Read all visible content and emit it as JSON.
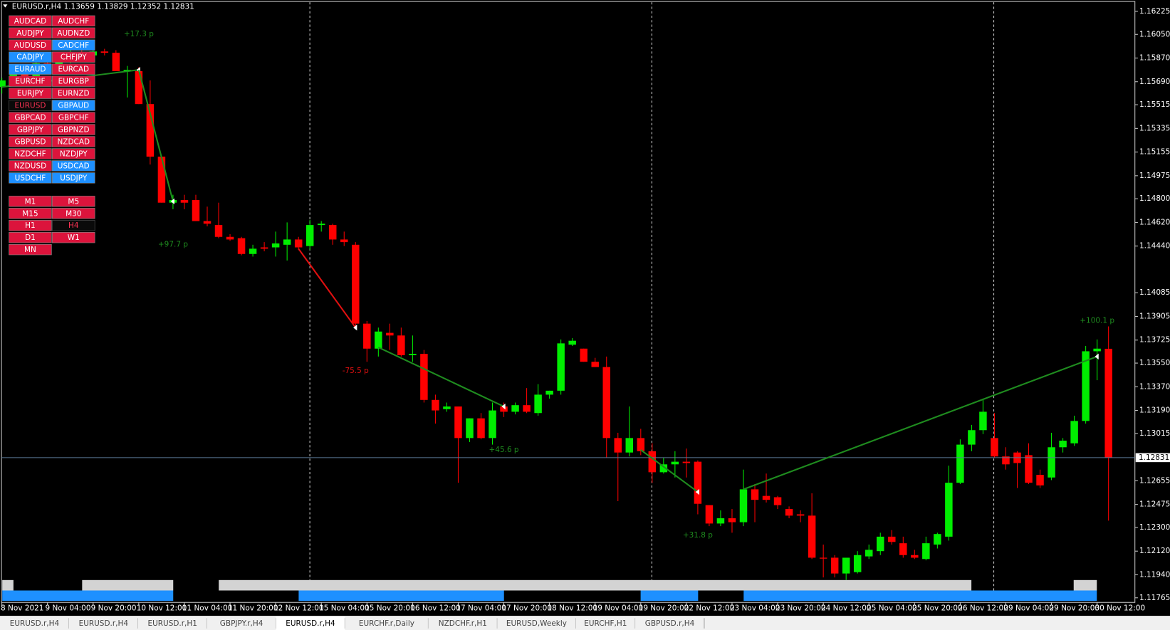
{
  "header": {
    "symbol": "EURUSD.r,H4"
  },
  "chart_data": {
    "type": "candlestick",
    "up_color": "#00ee00",
    "down_color": "#ff0000",
    "x": [
      "8 Nov 2021",
      null,
      null,
      null,
      "9 Nov 04:00",
      null,
      null,
      null,
      "9 Nov 20:00",
      null,
      null,
      null,
      "10 Nov 12:00",
      null,
      null,
      null,
      "11 Nov 04:00",
      null,
      null,
      null,
      "11 Nov 20:00",
      null,
      null,
      null,
      "12 Nov 12:00",
      null,
      null,
      null,
      "15 Nov 04:00",
      null,
      null,
      null,
      "15 Nov 20:00",
      null,
      null,
      null,
      "16 Nov 12:00",
      null,
      null,
      null,
      "17 Nov 04:00",
      null,
      null,
      null,
      "17 Nov 20:00",
      null,
      null,
      null,
      "18 Nov 12:00",
      null,
      null,
      null,
      "19 Nov 04:00",
      null,
      null,
      null,
      "19 Nov 20:00",
      null,
      null,
      null,
      "22 Nov 12:00",
      null,
      null,
      null,
      "23 Nov 04:00",
      null,
      null,
      null,
      "23 Nov 20:00",
      null,
      null,
      null,
      "24 Nov 12:00",
      null,
      null,
      null,
      "25 Nov 04:00",
      null,
      null,
      null,
      "25 Nov 20:00",
      null,
      null,
      null,
      "26 Nov 12:00",
      null,
      null,
      null,
      "29 Nov 04:00",
      null,
      null,
      null,
      "29 Nov 20:00",
      null,
      null,
      null,
      "30 Nov 12:00",
      null
    ],
    "open": [
      1.1565,
      1.157,
      1.1577,
      1.1571,
      1.1583,
      1.1578,
      1.1587,
      1.1591,
      1.1589,
      1.1592,
      1.1591,
      1.1577,
      1.1577,
      1.1552,
      1.1512,
      1.1477,
      1.1479,
      1.1479,
      1.1463,
      1.146,
      1.1451,
      1.145,
      1.1438,
      1.1443,
      1.1443,
      1.1445,
      1.1449,
      1.1444,
      1.146,
      1.146,
      1.1449,
      1.1445,
      1.1385,
      1.1366,
      1.1378,
      1.1376,
      1.1361,
      1.1362,
      1.1327,
      1.132,
      1.1322,
      1.1298,
      1.1313,
      1.1298,
      1.1322,
      1.1318,
      1.1323,
      1.1317,
      1.1331,
      1.1334,
      1.1369,
      1.1366,
      1.1356,
      1.1352,
      1.1298,
      1.1287,
      1.1298,
      1.1288,
      1.1272,
      1.1278,
      1.128,
      1.128,
      1.1247,
      1.1233,
      1.1237,
      1.1234,
      1.1259,
      1.1254,
      1.1253,
      1.1244,
      1.124,
      1.1239,
      1.1207,
      1.1207,
      1.1195,
      1.1196,
      1.1208,
      1.1212,
      1.1223,
      1.1218,
      1.1209,
      1.1206,
      1.1217,
      1.1223,
      1.1264,
      1.1293,
      1.1304,
      1.1298,
      1.1284,
      1.1287,
      1.1285,
      1.127,
      1.1268,
      1.1291,
      1.1294,
      1.1311,
      1.1364,
      1.13659
    ],
    "high": [
      1.1572,
      1.158,
      1.1582,
      1.1585,
      1.1588,
      1.159,
      1.1595,
      1.1594,
      1.1596,
      1.1594,
      1.1593,
      1.1581,
      1.158,
      1.157,
      1.1512,
      1.1483,
      1.1483,
      1.1483,
      1.1474,
      1.1477,
      1.1453,
      1.1451,
      1.1445,
      1.1447,
      1.1455,
      1.1462,
      1.1451,
      1.1464,
      1.1463,
      1.1461,
      1.1455,
      1.1447,
      1.1387,
      1.1382,
      1.1385,
      1.1382,
      1.1376,
      1.1365,
      1.1331,
      1.1325,
      1.1322,
      1.1313,
      1.1317,
      1.1325,
      1.1325,
      1.1325,
      1.1336,
      1.1339,
      1.1334,
      1.1373,
      1.1374,
      1.1366,
      1.1359,
      1.136,
      1.1302,
      1.1322,
      1.1305,
      1.1294,
      1.1283,
      1.1288,
      1.129,
      1.1281,
      1.1247,
      1.1243,
      1.1244,
      1.1274,
      1.1263,
      1.1271,
      1.1254,
      1.1246,
      1.1243,
      1.1256,
      1.1217,
      1.1209,
      1.1206,
      1.1212,
      1.1217,
      1.1226,
      1.1228,
      1.1223,
      1.1213,
      1.1223,
      1.1226,
      1.1277,
      1.1297,
      1.1308,
      1.1328,
      1.1317,
      1.1291,
      1.1288,
      1.1294,
      1.1274,
      1.1302,
      1.1298,
      1.1315,
      1.1368,
      1.1373,
      1.13829
    ],
    "low": [
      1.156,
      1.1566,
      1.1568,
      1.1569,
      1.1575,
      1.1576,
      1.1583,
      1.1585,
      1.1587,
      1.1589,
      1.1577,
      1.1557,
      1.1552,
      1.1506,
      1.1477,
      1.1472,
      1.1472,
      1.1463,
      1.1459,
      1.145,
      1.1448,
      1.1437,
      1.1436,
      1.144,
      1.1436,
      1.1433,
      1.1441,
      1.1441,
      1.1455,
      1.1445,
      1.1444,
      1.1382,
      1.1356,
      1.136,
      1.1365,
      1.136,
      1.1356,
      1.1325,
      1.1309,
      1.1318,
      1.1264,
      1.1295,
      1.1297,
      1.1293,
      1.1314,
      1.1316,
      1.1317,
      1.1315,
      1.1328,
      1.1331,
      1.1368,
      1.1356,
      1.1352,
      1.1283,
      1.125,
      1.1284,
      1.1285,
      1.1264,
      1.1271,
      1.1268,
      1.1268,
      1.124,
      1.1231,
      1.1231,
      1.1226,
      1.1231,
      1.1234,
      1.1249,
      1.1244,
      1.1237,
      1.1234,
      1.1206,
      1.1192,
      1.1192,
      1.119,
      1.1195,
      1.1206,
      1.1209,
      1.1217,
      1.1207,
      1.1206,
      1.1205,
      1.1214,
      1.122,
      1.1263,
      1.1288,
      1.1301,
      1.1283,
      1.1274,
      1.126,
      1.1263,
      1.126,
      1.1266,
      1.1287,
      1.1292,
      1.1309,
      1.1342,
      1.12352
    ],
    "close": [
      1.157,
      1.1577,
      1.1571,
      1.1583,
      1.1578,
      1.1587,
      1.1591,
      1.1589,
      1.1592,
      1.1591,
      1.1577,
      1.1578,
      1.1552,
      1.1512,
      1.1477,
      1.1479,
      1.1477,
      1.1463,
      1.1461,
      1.1451,
      1.1449,
      1.1438,
      1.1442,
      1.1442,
      1.1446,
      1.1449,
      1.1443,
      1.146,
      1.1461,
      1.1449,
      1.1447,
      1.1385,
      1.1366,
      1.1379,
      1.1376,
      1.1361,
      1.1362,
      1.1327,
      1.1319,
      1.1322,
      1.1298,
      1.1313,
      1.1298,
      1.1319,
      1.1318,
      1.1323,
      1.1318,
      1.1331,
      1.1334,
      1.137,
      1.1372,
      1.1356,
      1.1352,
      1.1298,
      1.1287,
      1.1298,
      1.1288,
      1.1272,
      1.1278,
      1.128,
      1.1279,
      1.1248,
      1.1233,
      1.1237,
      1.1234,
      1.1259,
      1.1251,
      1.1251,
      1.1247,
      1.1239,
      1.1239,
      1.1207,
      1.1207,
      1.1195,
      1.1207,
      1.1209,
      1.1213,
      1.1223,
      1.1219,
      1.1209,
      1.1207,
      1.1218,
      1.1225,
      1.1264,
      1.1293,
      1.1304,
      1.1318,
      1.1284,
      1.1278,
      1.1279,
      1.1264,
      1.1262,
      1.1291,
      1.1296,
      1.1311,
      1.1364,
      1.1366,
      1.12831
    ],
    "ylim": [
      1.1173,
      1.163
    ],
    "yticks": [
      1.16225,
      {
        "value": 1.1605,
        "label": "1.16050"
      },
      {
        "value": 1.1587,
        "label": "1.15870"
      },
      {
        "value": 1.1569,
        "label": "1.15690"
      },
      1.15515,
      1.15335,
      1.15155,
      1.14975,
      {
        "value": 1.148,
        "label": "1.14800"
      },
      {
        "value": 1.1462,
        "label": "1.14620"
      },
      {
        "value": 1.1444,
        "label": "1.14440"
      },
      1.14085,
      1.13905,
      1.13725,
      {
        "value": 1.1355,
        "label": "1.13550"
      },
      {
        "value": 1.1337,
        "label": "1.13370"
      },
      {
        "value": 1.1319,
        "label": "1.13190"
      },
      1.13015,
      1.12655,
      1.12475,
      {
        "value": 1.123,
        "label": "1.12300"
      },
      {
        "value": 1.1212,
        "label": "1.12120"
      },
      {
        "value": 1.1194,
        "label": "1.11940"
      },
      1.11765
    ],
    "price_line_color": "#5a7896",
    "trend_lines": [
      {
        "label": "+17.3 p",
        "color": "#1f8c1f",
        "from": [
          0,
          1.1565
        ],
        "to": [
          12,
          1.1578
        ]
      },
      {
        "label": "+97.7 p",
        "color": "#1f8c1f",
        "from": [
          12,
          1.1578
        ],
        "to": [
          15,
          1.1478
        ]
      },
      {
        "label": "-75.5 p",
        "color": "#e01010",
        "from": [
          26,
          1.1442
        ],
        "to": [
          31,
          1.1382
        ]
      },
      {
        "label": "+45.6 p",
        "color": "#1f8c1f",
        "from": [
          33,
          1.1367
        ],
        "to": [
          44,
          1.1322
        ]
      },
      {
        "label": "+31.8 p",
        "color": "#1f8c1f",
        "from": [
          56,
          1.1289
        ],
        "to": [
          61,
          1.1257
        ]
      },
      {
        "label": "+100.1 p",
        "color": "#1f8c1f",
        "from": [
          65,
          1.1259
        ],
        "to": [
          96,
          1.136
        ]
      }
    ]
  },
  "symbols": [
    {
      "label": "AUDCAD",
      "color": "#dc143c"
    },
    {
      "label": "AUDCHF",
      "color": "#dc143c"
    },
    {
      "label": "AUDJPY",
      "color": "#dc143c"
    },
    {
      "label": "AUDNZD",
      "color": "#dc143c"
    },
    {
      "label": "AUDUSD",
      "color": "#dc143c"
    },
    {
      "label": "CADCHF",
      "color": "#1e90ff"
    },
    {
      "label": "CADJPY",
      "color": "#1e90ff"
    },
    {
      "label": "CHFJPY",
      "color": "#dc143c"
    },
    {
      "label": "EURAUD",
      "color": "#1e90ff"
    },
    {
      "label": "EURCAD",
      "color": "#dc143c"
    },
    {
      "label": "EURCHF",
      "color": "#dc143c"
    },
    {
      "label": "EURGBP",
      "color": "#dc143c"
    },
    {
      "label": "EURJPY",
      "color": "#dc143c"
    },
    {
      "label": "EURNZD",
      "color": "#dc143c"
    },
    {
      "label": "EURUSD",
      "color": "#0a0a0a"
    },
    {
      "label": "GBPAUD",
      "color": "#1e90ff"
    },
    {
      "label": "GBPCAD",
      "color": "#dc143c"
    },
    {
      "label": "GBPCHF",
      "color": "#dc143c"
    },
    {
      "label": "GBPJPY",
      "color": "#dc143c"
    },
    {
      "label": "GBPNZD",
      "color": "#dc143c"
    },
    {
      "label": "GBPUSD",
      "color": "#dc143c"
    },
    {
      "label": "NZDCAD",
      "color": "#dc143c"
    },
    {
      "label": "NZDCHF",
      "color": "#dc143c"
    },
    {
      "label": "NZDJPY",
      "color": "#dc143c"
    },
    {
      "label": "NZDUSD",
      "color": "#dc143c"
    },
    {
      "label": "USDCAD",
      "color": "#1e90ff"
    },
    {
      "label": "USDCHF",
      "color": "#1e90ff"
    },
    {
      "label": "USDJPY",
      "color": "#1e90ff"
    }
  ],
  "timeframes": [
    {
      "label": "M1",
      "color": "#dc143c"
    },
    {
      "label": "M5",
      "color": "#dc143c"
    },
    {
      "label": "M15",
      "color": "#dc143c"
    },
    {
      "label": "M30",
      "color": "#dc143c"
    },
    {
      "label": "H1",
      "color": "#dc143c"
    },
    {
      "label": "H4",
      "color": "#0a0a0a"
    },
    {
      "label": "D1",
      "color": "#dc143c"
    },
    {
      "label": "W1",
      "color": "#dc143c"
    },
    {
      "label": "MN",
      "color": "#dc143c"
    }
  ],
  "tabs": [
    "EURUSD.r,H4",
    "EURUSD.r,H4",
    "EURUSD.r,H1",
    "GBPJPY.r,H4",
    "EURUSD.r,H4",
    "EURCHF.r,Daily",
    "NZDCHF.r,H1",
    "EURUSD,Weekly",
    "EURCHF,H1",
    "GBPUSD.r,H4"
  ],
  "active_tab": 4
}
